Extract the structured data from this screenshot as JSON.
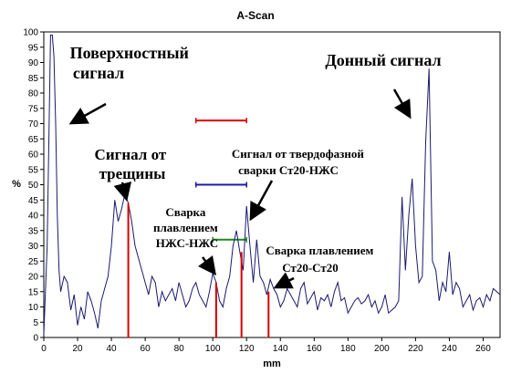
{
  "chart_data": {
    "type": "line",
    "title": "A-Scan",
    "xlabel": "mm",
    "ylabel": "%",
    "xlim": [
      0,
      270
    ],
    "ylim": [
      0,
      100
    ],
    "xticks": [
      0,
      20,
      40,
      60,
      80,
      100,
      120,
      140,
      160,
      180,
      200,
      220,
      240,
      260
    ],
    "yticks": [
      0,
      5,
      10,
      15,
      20,
      25,
      30,
      35,
      40,
      45,
      50,
      55,
      60,
      65,
      70,
      75,
      80,
      85,
      90,
      95,
      100
    ],
    "grid": false,
    "line_color": "#1a1a6e",
    "series": [
      {
        "x": [
          0,
          2,
          4,
          5,
          6,
          7,
          8,
          9,
          10,
          12,
          14,
          16,
          18,
          20,
          22,
          24,
          26,
          28,
          30,
          32,
          34,
          36,
          38,
          40,
          42,
          44,
          46,
          48,
          50,
          52,
          54,
          56,
          58,
          60,
          62,
          64,
          66,
          68,
          70,
          72,
          74,
          76,
          78,
          80,
          82,
          84,
          86,
          88,
          90,
          92,
          94,
          96,
          98,
          100,
          102,
          104,
          106,
          108,
          110,
          112,
          114,
          116,
          118,
          120,
          122,
          124,
          126,
          128,
          130,
          132,
          134,
          136,
          138,
          140,
          142,
          144,
          146,
          148,
          150,
          152,
          154,
          156,
          158,
          160,
          162,
          164,
          166,
          168,
          170,
          172,
          174,
          176,
          178,
          180,
          182,
          184,
          186,
          188,
          190,
          192,
          194,
          196,
          198,
          200,
          202,
          204,
          206,
          208,
          210,
          212,
          214,
          216,
          218,
          220,
          222,
          224,
          226,
          228,
          230,
          232,
          234,
          236,
          238,
          240,
          242,
          244,
          246,
          248,
          250,
          252,
          254,
          256,
          258,
          260,
          262,
          264,
          266,
          268,
          270
        ],
        "values": [
          1,
          30,
          99,
          99,
          92,
          70,
          40,
          22,
          15,
          20,
          18,
          9,
          14,
          4,
          10,
          6,
          15,
          12,
          8,
          3,
          12,
          16,
          20,
          30,
          45,
          38,
          42,
          47,
          44,
          38,
          30,
          26,
          22,
          18,
          14,
          20,
          18,
          10,
          15,
          12,
          14,
          16,
          12,
          18,
          14,
          10,
          12,
          16,
          18,
          14,
          12,
          10,
          15,
          21,
          18,
          12,
          10,
          16,
          20,
          30,
          35,
          28,
          22,
          43,
          30,
          18,
          32,
          20,
          18,
          14,
          19,
          16,
          14,
          10,
          12,
          16,
          14,
          12,
          10,
          16,
          18,
          11,
          13,
          15,
          9,
          13,
          12,
          14,
          10,
          15,
          18,
          12,
          13,
          8,
          10,
          12,
          13,
          11,
          12,
          14,
          10,
          12,
          8,
          10,
          14,
          8,
          9,
          10,
          12,
          46,
          22,
          40,
          52,
          30,
          18,
          20,
          64,
          88,
          25,
          22,
          12,
          18,
          15,
          28,
          14,
          18,
          16,
          10,
          12,
          14,
          9,
          12,
          13,
          10,
          14,
          12,
          16,
          15,
          14
        ]
      }
    ],
    "red_markers": [
      50,
      102,
      117,
      133
    ],
    "horizontal_markers": [
      {
        "x1": 90,
        "x2": 120,
        "y": 71,
        "color": "#dd0000"
      },
      {
        "x1": 90,
        "x2": 120,
        "y": 50,
        "color": "#1a1aaa"
      },
      {
        "x1": 100,
        "x2": 120,
        "y": 32,
        "color": "#228822"
      }
    ],
    "annotations": [
      {
        "lines": [
          "Поверхностный",
          "сигнал"
        ]
      },
      {
        "lines": [
          "Донный сигнал"
        ]
      },
      {
        "lines": [
          "Сигнал от",
          "трещины"
        ]
      },
      {
        "lines": [
          "Сигнал от твердофазной",
          "сварки Ст20-НЖС"
        ]
      },
      {
        "lines": [
          "Сварка",
          "плавлением",
          "НЖС-НЖС"
        ]
      },
      {
        "lines": [
          "Сварка плавлением",
          "Ст20-Ст20"
        ]
      }
    ]
  }
}
